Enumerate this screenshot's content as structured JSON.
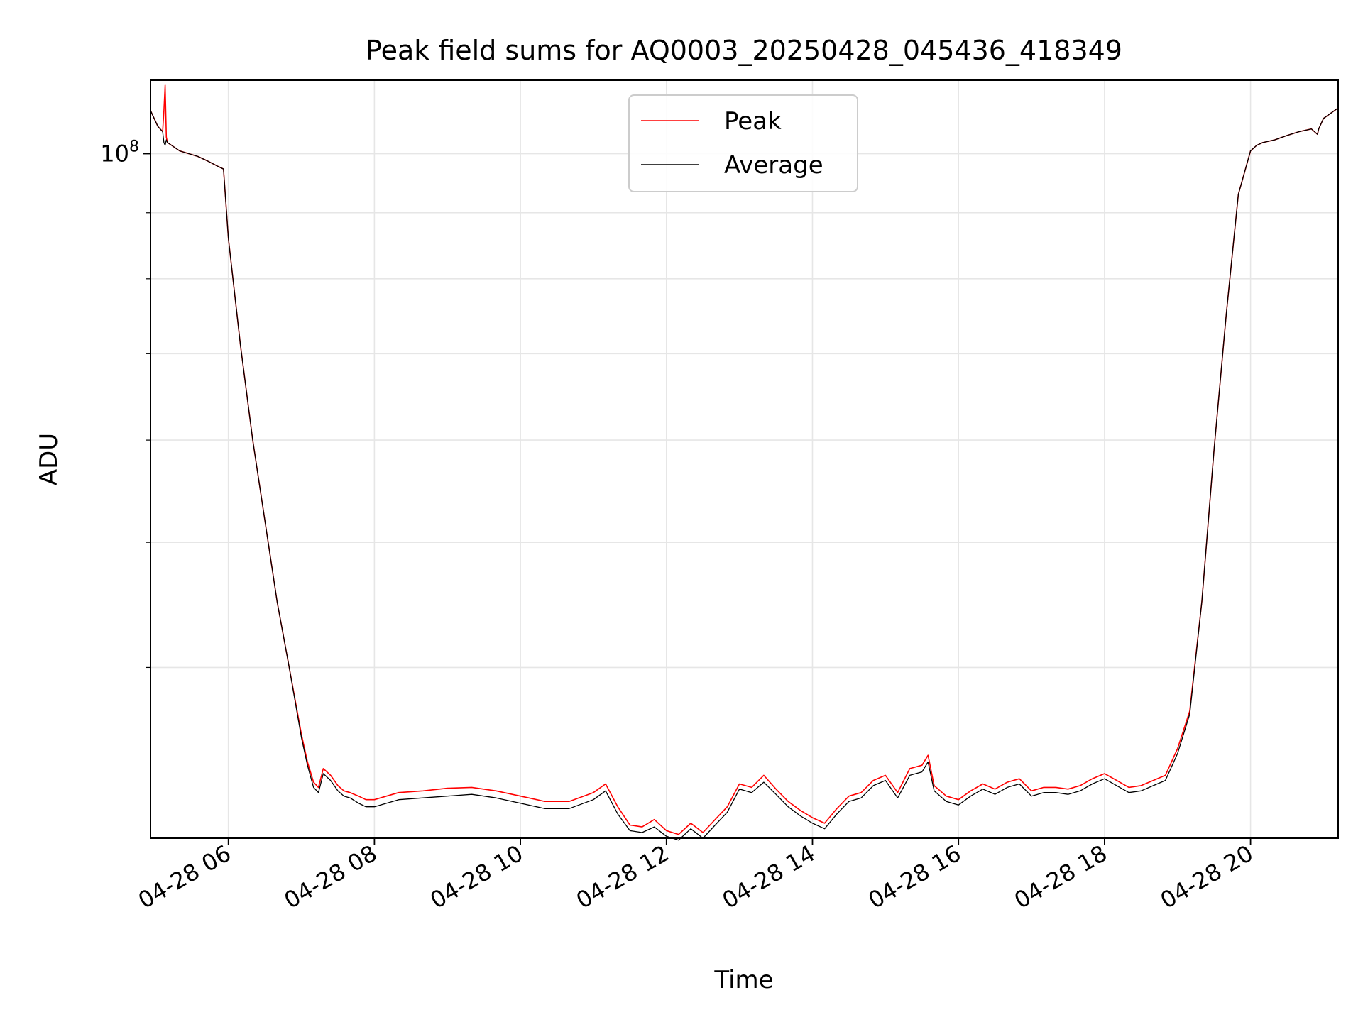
{
  "chart_data": {
    "type": "line",
    "title": "Peak field sums for AQ0003_20250428_045436_418349",
    "xlabel": "Time",
    "ylabel": "ADU",
    "y_scale": "log",
    "xlim": [
      "2025-04-28T04:56",
      "2025-04-28T21:12"
    ],
    "ylim": [
      29500000,
      114000000
    ],
    "grid": true,
    "legend_position": "top-center",
    "x_tick_labels": [
      "04-28 06",
      "04-28 08",
      "04-28 10",
      "04-28 12",
      "04-28 14",
      "04-28 16",
      "04-28 18",
      "04-28 20"
    ],
    "x_ticks": [
      "2025-04-28T06:00",
      "2025-04-28T08:00",
      "2025-04-28T10:00",
      "2025-04-28T12:00",
      "2025-04-28T14:00",
      "2025-04-28T16:00",
      "2025-04-28T18:00",
      "2025-04-28T20:00"
    ],
    "y_major_tick_labels": [
      {
        "base": "10",
        "exponent": "8"
      }
    ],
    "y_major_ticks": [
      100000000
    ],
    "y_minor_ticks": [
      40000000,
      50000000,
      60000000,
      70000000,
      80000000,
      90000000
    ],
    "series": [
      {
        "name": "Peak",
        "color": "#ff0000",
        "x": [
          "2025-04-28T04:56",
          "2025-04-28T05:02",
          "2025-04-28T05:06",
          "2025-04-28T05:07",
          "2025-04-28T05:08",
          "2025-04-28T05:09",
          "2025-04-28T05:10",
          "2025-04-28T05:20",
          "2025-04-28T05:35",
          "2025-04-28T05:42",
          "2025-04-28T05:52",
          "2025-04-28T05:56",
          "2025-04-28T06:00",
          "2025-04-28T06:10",
          "2025-04-28T06:20",
          "2025-04-28T06:30",
          "2025-04-28T06:40",
          "2025-04-28T06:50",
          "2025-04-28T07:00",
          "2025-04-28T07:05",
          "2025-04-28T07:10",
          "2025-04-28T07:14",
          "2025-04-28T07:18",
          "2025-04-28T07:24",
          "2025-04-28T07:30",
          "2025-04-28T07:35",
          "2025-04-28T07:40",
          "2025-04-28T07:47",
          "2025-04-28T07:53",
          "2025-04-28T08:00",
          "2025-04-28T08:10",
          "2025-04-28T08:20",
          "2025-04-28T08:40",
          "2025-04-28T09:00",
          "2025-04-28T09:20",
          "2025-04-28T09:40",
          "2025-04-28T10:00",
          "2025-04-28T10:20",
          "2025-04-28T10:40",
          "2025-04-28T11:00",
          "2025-04-28T11:10",
          "2025-04-28T11:20",
          "2025-04-28T11:30",
          "2025-04-28T11:40",
          "2025-04-28T11:50",
          "2025-04-28T12:00",
          "2025-04-28T12:10",
          "2025-04-28T12:20",
          "2025-04-28T12:30",
          "2025-04-28T12:40",
          "2025-04-28T12:50",
          "2025-04-28T13:00",
          "2025-04-28T13:10",
          "2025-04-28T13:20",
          "2025-04-28T13:30",
          "2025-04-28T13:40",
          "2025-04-28T13:50",
          "2025-04-28T14:00",
          "2025-04-28T14:10",
          "2025-04-28T14:20",
          "2025-04-28T14:30",
          "2025-04-28T14:40",
          "2025-04-28T14:50",
          "2025-04-28T15:00",
          "2025-04-28T15:10",
          "2025-04-28T15:20",
          "2025-04-28T15:30",
          "2025-04-28T15:35",
          "2025-04-28T15:40",
          "2025-04-28T15:50",
          "2025-04-28T16:00",
          "2025-04-28T16:10",
          "2025-04-28T16:20",
          "2025-04-28T16:30",
          "2025-04-28T16:40",
          "2025-04-28T16:50",
          "2025-04-28T17:00",
          "2025-04-28T17:10",
          "2025-04-28T17:20",
          "2025-04-28T17:30",
          "2025-04-28T17:40",
          "2025-04-28T17:50",
          "2025-04-28T18:00",
          "2025-04-28T18:10",
          "2025-04-28T18:20",
          "2025-04-28T18:30",
          "2025-04-28T18:40",
          "2025-04-28T18:50",
          "2025-04-28T19:00",
          "2025-04-28T19:10",
          "2025-04-28T19:20",
          "2025-04-28T19:30",
          "2025-04-28T19:40",
          "2025-04-28T19:50",
          "2025-04-28T20:00",
          "2025-04-28T20:05",
          "2025-04-28T20:10",
          "2025-04-28T20:20",
          "2025-04-28T20:30",
          "2025-04-28T20:40",
          "2025-04-28T20:50",
          "2025-04-28T20:55",
          "2025-04-28T20:56",
          "2025-04-28T21:00",
          "2025-04-28T21:12"
        ],
        "y": [
          108000000,
          105000000,
          104000000,
          108000000,
          113000000,
          103000000,
          102000000,
          100500000,
          99500000,
          98800000,
          97700000,
          97300000,
          86000000,
          71000000,
          60000000,
          52000000,
          45000000,
          40000000,
          35500000,
          33800000,
          32600000,
          32300000,
          33400000,
          33000000,
          32400000,
          32100000,
          32000000,
          31800000,
          31600000,
          31600000,
          31800000,
          32000000,
          32100000,
          32250000,
          32300000,
          32100000,
          31800000,
          31500000,
          31500000,
          32000000,
          32500000,
          31200000,
          30200000,
          30100000,
          30500000,
          29900000,
          29700000,
          30300000,
          29800000,
          30500000,
          31200000,
          32500000,
          32300000,
          33000000,
          32200000,
          31500000,
          31000000,
          30600000,
          30300000,
          31100000,
          31800000,
          32000000,
          32700000,
          33000000,
          32000000,
          33400000,
          33600000,
          34200000,
          32400000,
          31800000,
          31600000,
          32100000,
          32500000,
          32200000,
          32600000,
          32800000,
          32100000,
          32300000,
          32300000,
          32200000,
          32400000,
          32800000,
          33100000,
          32700000,
          32300000,
          32400000,
          32700000,
          33000000,
          34600000,
          37000000,
          45000000,
          59000000,
          75000000,
          93000000,
          100500000,
          101500000,
          102000000,
          102500000,
          103300000,
          104000000,
          104500000,
          103500000,
          104500000,
          106500000,
          108500000
        ]
      },
      {
        "name": "Average",
        "color": "#000000",
        "x": [
          "2025-04-28T04:56",
          "2025-04-28T05:02",
          "2025-04-28T05:06",
          "2025-04-28T05:07",
          "2025-04-28T05:08",
          "2025-04-28T05:09",
          "2025-04-28T05:10",
          "2025-04-28T05:20",
          "2025-04-28T05:35",
          "2025-04-28T05:42",
          "2025-04-28T05:52",
          "2025-04-28T05:56",
          "2025-04-28T06:00",
          "2025-04-28T06:10",
          "2025-04-28T06:20",
          "2025-04-28T06:30",
          "2025-04-28T06:40",
          "2025-04-28T06:50",
          "2025-04-28T07:00",
          "2025-04-28T07:05",
          "2025-04-28T07:10",
          "2025-04-28T07:14",
          "2025-04-28T07:18",
          "2025-04-28T07:24",
          "2025-04-28T07:30",
          "2025-04-28T07:35",
          "2025-04-28T07:40",
          "2025-04-28T07:47",
          "2025-04-28T07:53",
          "2025-04-28T08:00",
          "2025-04-28T08:10",
          "2025-04-28T08:20",
          "2025-04-28T08:40",
          "2025-04-28T09:00",
          "2025-04-28T09:20",
          "2025-04-28T09:40",
          "2025-04-28T10:00",
          "2025-04-28T10:20",
          "2025-04-28T10:40",
          "2025-04-28T11:00",
          "2025-04-28T11:10",
          "2025-04-28T11:20",
          "2025-04-28T11:30",
          "2025-04-28T11:40",
          "2025-04-28T11:50",
          "2025-04-28T12:00",
          "2025-04-28T12:10",
          "2025-04-28T12:20",
          "2025-04-28T12:30",
          "2025-04-28T12:40",
          "2025-04-28T12:50",
          "2025-04-28T13:00",
          "2025-04-28T13:10",
          "2025-04-28T13:20",
          "2025-04-28T13:30",
          "2025-04-28T13:40",
          "2025-04-28T13:50",
          "2025-04-28T14:00",
          "2025-04-28T14:10",
          "2025-04-28T14:20",
          "2025-04-28T14:30",
          "2025-04-28T14:40",
          "2025-04-28T14:50",
          "2025-04-28T15:00",
          "2025-04-28T15:10",
          "2025-04-28T15:20",
          "2025-04-28T15:30",
          "2025-04-28T15:35",
          "2025-04-28T15:40",
          "2025-04-28T15:50",
          "2025-04-28T16:00",
          "2025-04-28T16:10",
          "2025-04-28T16:20",
          "2025-04-28T16:30",
          "2025-04-28T16:40",
          "2025-04-28T16:50",
          "2025-04-28T17:00",
          "2025-04-28T17:10",
          "2025-04-28T17:20",
          "2025-04-28T17:30",
          "2025-04-28T17:40",
          "2025-04-28T17:50",
          "2025-04-28T18:00",
          "2025-04-28T18:10",
          "2025-04-28T18:20",
          "2025-04-28T18:30",
          "2025-04-28T18:40",
          "2025-04-28T18:50",
          "2025-04-28T19:00",
          "2025-04-28T19:10",
          "2025-04-28T19:20",
          "2025-04-28T19:30",
          "2025-04-28T19:40",
          "2025-04-28T19:50",
          "2025-04-28T20:00",
          "2025-04-28T20:05",
          "2025-04-28T20:10",
          "2025-04-28T20:20",
          "2025-04-28T20:30",
          "2025-04-28T20:40",
          "2025-04-28T20:50",
          "2025-04-28T20:55",
          "2025-04-28T20:56",
          "2025-04-28T21:00",
          "2025-04-28T21:12"
        ],
        "y": [
          108000000,
          105000000,
          104000000,
          102000000,
          101500000,
          102500000,
          102000000,
          100500000,
          99500000,
          98800000,
          97700000,
          97300000,
          86000000,
          71000000,
          60000000,
          52000000,
          45000000,
          40000000,
          35300000,
          33600000,
          32300000,
          32000000,
          33100000,
          32700000,
          32100000,
          31800000,
          31700000,
          31400000,
          31200000,
          31200000,
          31400000,
          31600000,
          31700000,
          31800000,
          31900000,
          31700000,
          31400000,
          31100000,
          31100000,
          31600000,
          32100000,
          30800000,
          29900000,
          29800000,
          30100000,
          29600000,
          29400000,
          30000000,
          29500000,
          30200000,
          30900000,
          32200000,
          32000000,
          32600000,
          31900000,
          31200000,
          30700000,
          30300000,
          30000000,
          30800000,
          31500000,
          31700000,
          32400000,
          32700000,
          31700000,
          33000000,
          33200000,
          33800000,
          32100000,
          31500000,
          31300000,
          31800000,
          32200000,
          31900000,
          32300000,
          32500000,
          31800000,
          32000000,
          32000000,
          31900000,
          32100000,
          32500000,
          32800000,
          32400000,
          32000000,
          32100000,
          32400000,
          32700000,
          34300000,
          36800000,
          45000000,
          59000000,
          75000000,
          93000000,
          100500000,
          101500000,
          102000000,
          102500000,
          103300000,
          104000000,
          104500000,
          103500000,
          104500000,
          106500000,
          108500000
        ]
      }
    ]
  }
}
